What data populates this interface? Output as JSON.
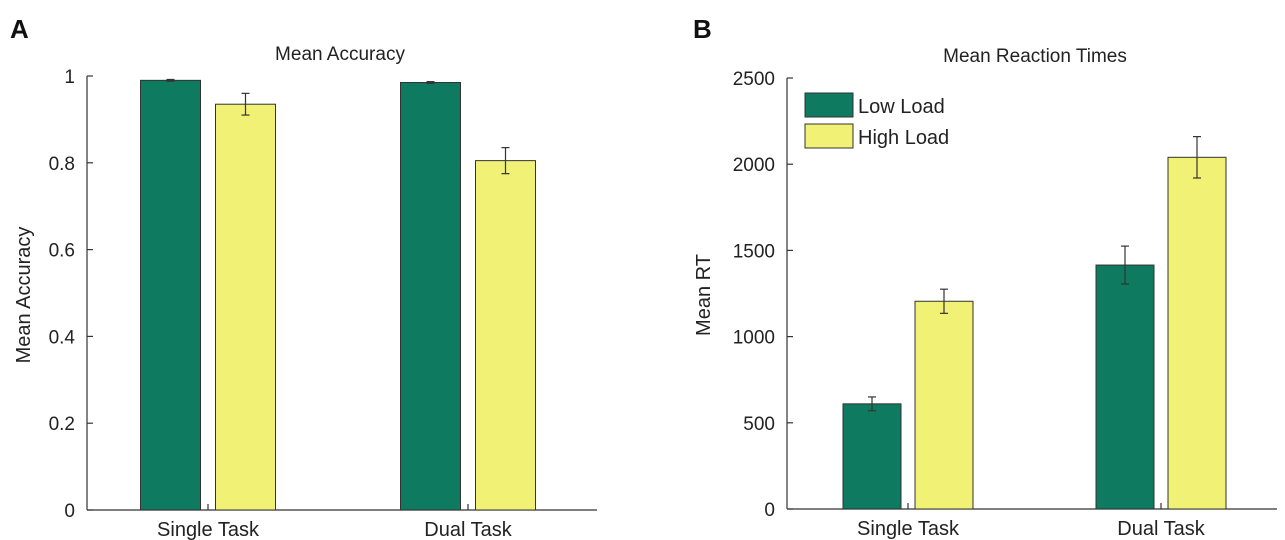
{
  "chart_data": [
    {
      "panel": "A",
      "type": "bar",
      "title": "Mean Accuracy",
      "xlabel": "",
      "ylabel": "Mean Accuracy",
      "ylim": [
        0,
        1
      ],
      "yticks": [
        "0",
        "0.2",
        "0.4",
        "0.6",
        "0.8",
        "1"
      ],
      "categories": [
        "Single Task",
        "Dual Task"
      ],
      "series": [
        {
          "values": [
            0.99,
            0.985
          ],
          "errors": [
            0.002,
            0.002
          ],
          "color": "#0e7a60"
        },
        {
          "values": [
            0.935,
            0.805
          ],
          "errors": [
            0.025,
            0.03
          ],
          "color": "#f1f275"
        }
      ],
      "legend": null,
      "grid": false
    },
    {
      "panel": "B",
      "type": "bar",
      "title": "Mean Reaction Times",
      "xlabel": "",
      "ylabel": "Mean RT",
      "ylim": [
        0,
        2500
      ],
      "yticks": [
        "0",
        "500",
        "1000",
        "1500",
        "2000",
        "2500"
      ],
      "categories": [
        "Single Task",
        "Dual Task"
      ],
      "series": [
        {
          "name": "Low Load",
          "values": [
            610,
            1415
          ],
          "errors": [
            40,
            110
          ],
          "color": "#0e7a60"
        },
        {
          "name": "High Load",
          "values": [
            1205,
            2040
          ],
          "errors": [
            70,
            120
          ],
          "color": "#f1f275"
        }
      ],
      "legend": "top-left",
      "grid": false
    }
  ]
}
